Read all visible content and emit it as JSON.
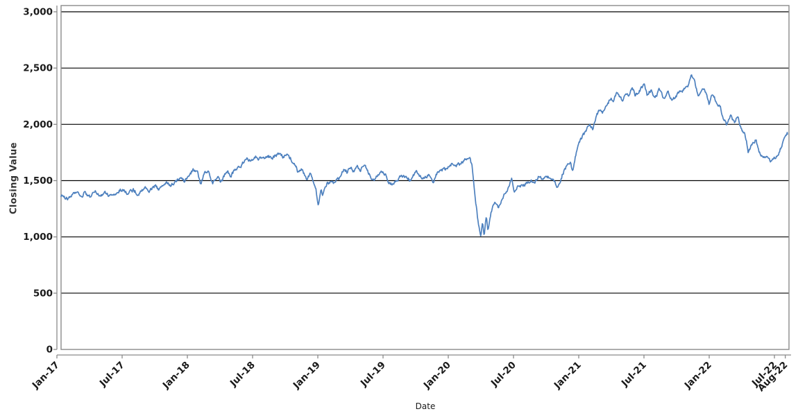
{
  "page": {
    "background": "#ffffff",
    "title": ""
  },
  "chart_data": {
    "type": "line",
    "title": "",
    "xlabel": "Date",
    "ylabel": "Closing Value",
    "legend": "none",
    "grid": "horizontal",
    "x_unit": "months since Jan-2017",
    "x_range": [
      0.38,
      67.34
    ],
    "ylim": [
      0,
      3055
    ],
    "y_ticks": [
      {
        "v": 0,
        "label": "0"
      },
      {
        "v": 500,
        "label": "500"
      },
      {
        "v": 1000,
        "label": "1,000"
      },
      {
        "v": 1500,
        "label": "1,500"
      },
      {
        "v": 2000,
        "label": "2,000"
      },
      {
        "v": 2500,
        "label": "2,500"
      },
      {
        "v": 3000,
        "label": "3,000"
      }
    ],
    "x_ticks": [
      {
        "m": 0,
        "label": "Jan-17"
      },
      {
        "m": 6,
        "label": "Jul-17"
      },
      {
        "m": 12,
        "label": "Jan-18"
      },
      {
        "m": 18,
        "label": "Jul-18"
      },
      {
        "m": 24,
        "label": "Jan-19"
      },
      {
        "m": 30,
        "label": "Jul-19"
      },
      {
        "m": 36,
        "label": "Jan-20"
      },
      {
        "m": 42,
        "label": "Jul-20"
      },
      {
        "m": 48,
        "label": "Jan-21"
      },
      {
        "m": 54,
        "label": "Jul-21"
      },
      {
        "m": 60,
        "label": "Jan-22"
      },
      {
        "m": 66,
        "label": "Jul-22"
      },
      {
        "m": 67,
        "label": "Aug-22"
      }
    ],
    "colors": {
      "line": "#4d80be",
      "grid": "#000000",
      "frame": "#8a8a8a",
      "axis": "#8a8a8a",
      "text": "#1a1a1a"
    },
    "series": [
      {
        "name": "Closing Value",
        "color": "#4d80be",
        "points": [
          [
            0.4,
            1370
          ],
          [
            0.7,
            1352
          ],
          [
            1.0,
            1340
          ],
          [
            1.4,
            1368
          ],
          [
            1.8,
            1400
          ],
          [
            2.2,
            1348
          ],
          [
            2.5,
            1388
          ],
          [
            3.0,
            1352
          ],
          [
            3.5,
            1398
          ],
          [
            4.0,
            1368
          ],
          [
            4.4,
            1392
          ],
          [
            5.0,
            1362
          ],
          [
            5.5,
            1396
          ],
          [
            6.0,
            1424
          ],
          [
            6.4,
            1390
          ],
          [
            7.0,
            1418
          ],
          [
            7.5,
            1382
          ],
          [
            8.0,
            1438
          ],
          [
            8.5,
            1412
          ],
          [
            9.0,
            1448
          ],
          [
            9.4,
            1422
          ],
          [
            10.0,
            1478
          ],
          [
            10.5,
            1460
          ],
          [
            11.0,
            1498
          ],
          [
            11.4,
            1518
          ],
          [
            11.7,
            1492
          ],
          [
            12.0,
            1524
          ],
          [
            12.4,
            1582
          ],
          [
            12.7,
            1604
          ],
          [
            13.0,
            1552
          ],
          [
            13.2,
            1462
          ],
          [
            13.6,
            1578
          ],
          [
            14.0,
            1594
          ],
          [
            14.3,
            1472
          ],
          [
            14.7,
            1542
          ],
          [
            15.1,
            1492
          ],
          [
            15.6,
            1580
          ],
          [
            16.0,
            1548
          ],
          [
            16.5,
            1598
          ],
          [
            17.0,
            1644
          ],
          [
            17.5,
            1698
          ],
          [
            17.8,
            1668
          ],
          [
            18.2,
            1718
          ],
          [
            18.6,
            1688
          ],
          [
            19.0,
            1702
          ],
          [
            19.4,
            1728
          ],
          [
            19.8,
            1692
          ],
          [
            20.3,
            1735
          ],
          [
            20.8,
            1710
          ],
          [
            21.2,
            1730
          ],
          [
            21.6,
            1688
          ],
          [
            22.0,
            1626
          ],
          [
            22.2,
            1568
          ],
          [
            22.5,
            1600
          ],
          [
            22.8,
            1552
          ],
          [
            23.0,
            1510
          ],
          [
            23.3,
            1548
          ],
          [
            23.6,
            1478
          ],
          [
            23.85,
            1400
          ],
          [
            24.05,
            1275
          ],
          [
            24.3,
            1398
          ],
          [
            24.45,
            1360
          ],
          [
            24.8,
            1460
          ],
          [
            25.1,
            1490
          ],
          [
            25.4,
            1470
          ],
          [
            25.8,
            1500
          ],
          [
            26.4,
            1595
          ],
          [
            26.7,
            1577
          ],
          [
            27.0,
            1613
          ],
          [
            27.3,
            1583
          ],
          [
            27.6,
            1626
          ],
          [
            27.9,
            1595
          ],
          [
            28.3,
            1645
          ],
          [
            28.7,
            1565
          ],
          [
            29.0,
            1484
          ],
          [
            29.4,
            1533
          ],
          [
            29.8,
            1583
          ],
          [
            30.2,
            1560
          ],
          [
            30.6,
            1484
          ],
          [
            31.0,
            1462
          ],
          [
            31.4,
            1520
          ],
          [
            31.8,
            1546
          ],
          [
            32.2,
            1515
          ],
          [
            32.6,
            1503
          ],
          [
            33.0,
            1577
          ],
          [
            33.4,
            1540
          ],
          [
            33.8,
            1520
          ],
          [
            34.2,
            1560
          ],
          [
            34.6,
            1500
          ],
          [
            35.0,
            1565
          ],
          [
            35.5,
            1600
          ],
          [
            36.0,
            1618
          ],
          [
            36.4,
            1655
          ],
          [
            36.8,
            1635
          ],
          [
            37.2,
            1660
          ],
          [
            37.6,
            1687
          ],
          [
            38.0,
            1690
          ],
          [
            38.2,
            1620
          ],
          [
            38.5,
            1350
          ],
          [
            38.75,
            1120
          ],
          [
            39.0,
            1010
          ],
          [
            39.15,
            1140
          ],
          [
            39.3,
            1015
          ],
          [
            39.5,
            1175
          ],
          [
            39.65,
            1065
          ],
          [
            40.0,
            1240
          ],
          [
            40.3,
            1302
          ],
          [
            40.6,
            1246
          ],
          [
            41.0,
            1360
          ],
          [
            41.5,
            1425
          ],
          [
            41.85,
            1533
          ],
          [
            42.05,
            1398
          ],
          [
            42.4,
            1448
          ],
          [
            43.0,
            1468
          ],
          [
            43.5,
            1485
          ],
          [
            44.0,
            1502
          ],
          [
            44.3,
            1532
          ],
          [
            44.7,
            1512
          ],
          [
            45.0,
            1546
          ],
          [
            45.4,
            1522
          ],
          [
            45.8,
            1486
          ],
          [
            46.1,
            1432
          ],
          [
            46.5,
            1556
          ],
          [
            46.75,
            1610
          ],
          [
            47.0,
            1642
          ],
          [
            47.2,
            1668
          ],
          [
            47.45,
            1585
          ],
          [
            47.7,
            1732
          ],
          [
            48.0,
            1812
          ],
          [
            48.3,
            1885
          ],
          [
            48.6,
            1935
          ],
          [
            49.0,
            2008
          ],
          [
            49.3,
            1953
          ],
          [
            49.6,
            2076
          ],
          [
            50.0,
            2130
          ],
          [
            50.2,
            2100
          ],
          [
            50.5,
            2168
          ],
          [
            51.0,
            2242
          ],
          [
            51.2,
            2193
          ],
          [
            51.5,
            2285
          ],
          [
            52.0,
            2211
          ],
          [
            52.3,
            2291
          ],
          [
            52.6,
            2242
          ],
          [
            52.9,
            2322
          ],
          [
            53.2,
            2260
          ],
          [
            53.6,
            2303
          ],
          [
            54.0,
            2352
          ],
          [
            54.3,
            2260
          ],
          [
            54.7,
            2316
          ],
          [
            55.0,
            2223
          ],
          [
            55.4,
            2303
          ],
          [
            55.8,
            2242
          ],
          [
            56.2,
            2285
          ],
          [
            56.6,
            2211
          ],
          [
            57.0,
            2260
          ],
          [
            57.5,
            2303
          ],
          [
            58.0,
            2320
          ],
          [
            58.4,
            2440
          ],
          [
            58.7,
            2365
          ],
          [
            59.0,
            2242
          ],
          [
            59.3,
            2322
          ],
          [
            59.7,
            2280
          ],
          [
            60.0,
            2180
          ],
          [
            60.2,
            2258
          ],
          [
            60.5,
            2230
          ],
          [
            61.0,
            2168
          ],
          [
            61.3,
            2057
          ],
          [
            61.6,
            1995
          ],
          [
            62.0,
            2076
          ],
          [
            62.3,
            2008
          ],
          [
            62.6,
            2070
          ],
          [
            63.0,
            1953
          ],
          [
            63.3,
            1916
          ],
          [
            63.6,
            1750
          ],
          [
            64.0,
            1830
          ],
          [
            64.3,
            1872
          ],
          [
            64.6,
            1750
          ],
          [
            65.0,
            1690
          ],
          [
            65.3,
            1730
          ],
          [
            65.6,
            1670
          ],
          [
            66.0,
            1700
          ],
          [
            66.3,
            1737
          ],
          [
            66.6,
            1793
          ],
          [
            66.9,
            1854
          ],
          [
            67.1,
            1890
          ],
          [
            67.2,
            1912
          ]
        ]
      }
    ]
  }
}
